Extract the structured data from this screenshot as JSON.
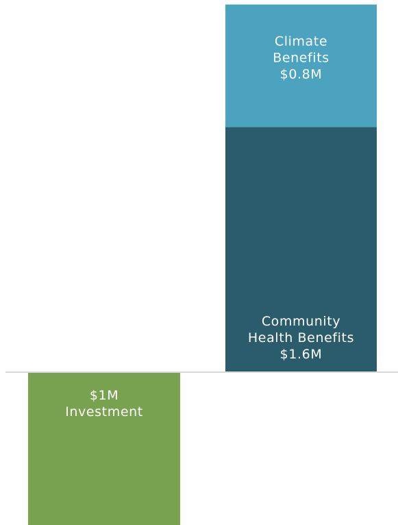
{
  "chart_data": {
    "type": "bar",
    "stacked": true,
    "baseline": 0,
    "unit": "$M",
    "grid": false,
    "legend": "none",
    "ylim": [
      -1.05,
      2.45
    ],
    "bars": [
      {
        "segments": [
          {
            "value": -1.0,
            "label_lines": [
              "$1M",
              "Investment"
            ],
            "color": "#78A150"
          }
        ]
      },
      {
        "segments": [
          {
            "value": 1.6,
            "label_lines": [
              "Community",
              "Health Benefits",
              "$1.6M"
            ],
            "color": "#2A5C6B"
          },
          {
            "value": 0.8,
            "label_lines": [
              "Climate",
              "Benefits",
              "$0.8M"
            ],
            "color": "#4BA3C0"
          }
        ]
      }
    ],
    "baseline_color": "#D9D9D9"
  }
}
